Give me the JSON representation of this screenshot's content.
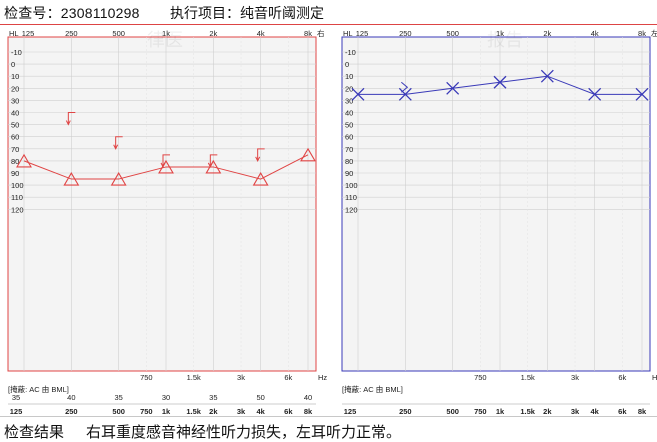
{
  "header": {
    "exam_number": "检查号：2308110298",
    "project": "执行项目：纯音听阈测定"
  },
  "footer": {
    "result_label": "检查结果",
    "result_text": "右耳重度感音神经性听力损失，左耳听力正常。"
  },
  "colors": {
    "right_ear": "#e04444",
    "left_ear": "#3a3ab8",
    "header_rule": "#dd4444"
  },
  "audiograms": [
    {
      "ear": "right",
      "corner_label": "右",
      "hl_label": "HL",
      "freq_ticks": [
        "125",
        "250",
        "500",
        "1k",
        "2k",
        "4k",
        "8k"
      ],
      "half_octave_ticks": [
        "750",
        "1.5k",
        "3k",
        "6k"
      ],
      "db_ticks": [
        -10,
        0,
        10,
        20,
        30,
        40,
        50,
        60,
        70,
        80,
        90,
        100,
        110,
        120
      ],
      "unit_label": "Hz",
      "masking_label": "[掩蔽: AC 由 BML]",
      "ac_thresholds": [
        {
          "freq": "125",
          "db": 80
        },
        {
          "freq": "250",
          "db": 95
        },
        {
          "freq": "500",
          "db": 95
        },
        {
          "freq": "1k",
          "db": 85
        },
        {
          "freq": "2k",
          "db": 85
        },
        {
          "freq": "4k",
          "db": 95
        },
        {
          "freq": "8k",
          "db": 75
        }
      ],
      "bc_thresholds": [
        {
          "freq": "250",
          "db": 45
        },
        {
          "freq": "500",
          "db": 65
        },
        {
          "freq": "1k",
          "db": 80
        },
        {
          "freq": "2k",
          "db": 80
        },
        {
          "freq": "4k",
          "db": 75
        }
      ],
      "masking_row": [
        {
          "freq": "125",
          "value": "35"
        },
        {
          "freq": "250",
          "value": "40"
        },
        {
          "freq": "500",
          "value": "35"
        },
        {
          "freq": "1k",
          "value": "30"
        },
        {
          "freq": "2k",
          "value": "35"
        },
        {
          "freq": "4k",
          "value": "50"
        },
        {
          "freq": "8k",
          "value": "40"
        }
      ],
      "bottom_freqs": [
        "125",
        "250",
        "500",
        "750",
        "1k",
        "1.5k",
        "2k",
        "3k",
        "4k",
        "6k",
        "8k"
      ]
    },
    {
      "ear": "left",
      "corner_label": "左",
      "hl_label": "HL",
      "freq_ticks": [
        "125",
        "250",
        "500",
        "1k",
        "2k",
        "4k",
        "8k"
      ],
      "half_octave_ticks": [
        "750",
        "1.5k",
        "3k",
        "6k"
      ],
      "db_ticks": [
        -10,
        0,
        10,
        20,
        30,
        40,
        50,
        60,
        70,
        80,
        90,
        100,
        110,
        120
      ],
      "unit_label": "Hz",
      "masking_label": "[掩蔽: AC 由 BML]",
      "ac_thresholds": [
        {
          "freq": "125",
          "db": 25
        },
        {
          "freq": "250",
          "db": 25
        },
        {
          "freq": "500",
          "db": 20
        },
        {
          "freq": "1k",
          "db": 15
        },
        {
          "freq": "2k",
          "db": 10
        },
        {
          "freq": "4k",
          "db": 25
        },
        {
          "freq": "8k",
          "db": 25
        }
      ],
      "bc_thresholds": [
        {
          "freq": "250",
          "db": 20
        }
      ],
      "masking_row": [],
      "bottom_freqs": [
        "125",
        "250",
        "500",
        "750",
        "1k",
        "1.5k",
        "2k",
        "3k",
        "4k",
        "6k",
        "8k"
      ]
    }
  ],
  "watermark": [
    "律医",
    "报告",
    "律医",
    "报告"
  ]
}
